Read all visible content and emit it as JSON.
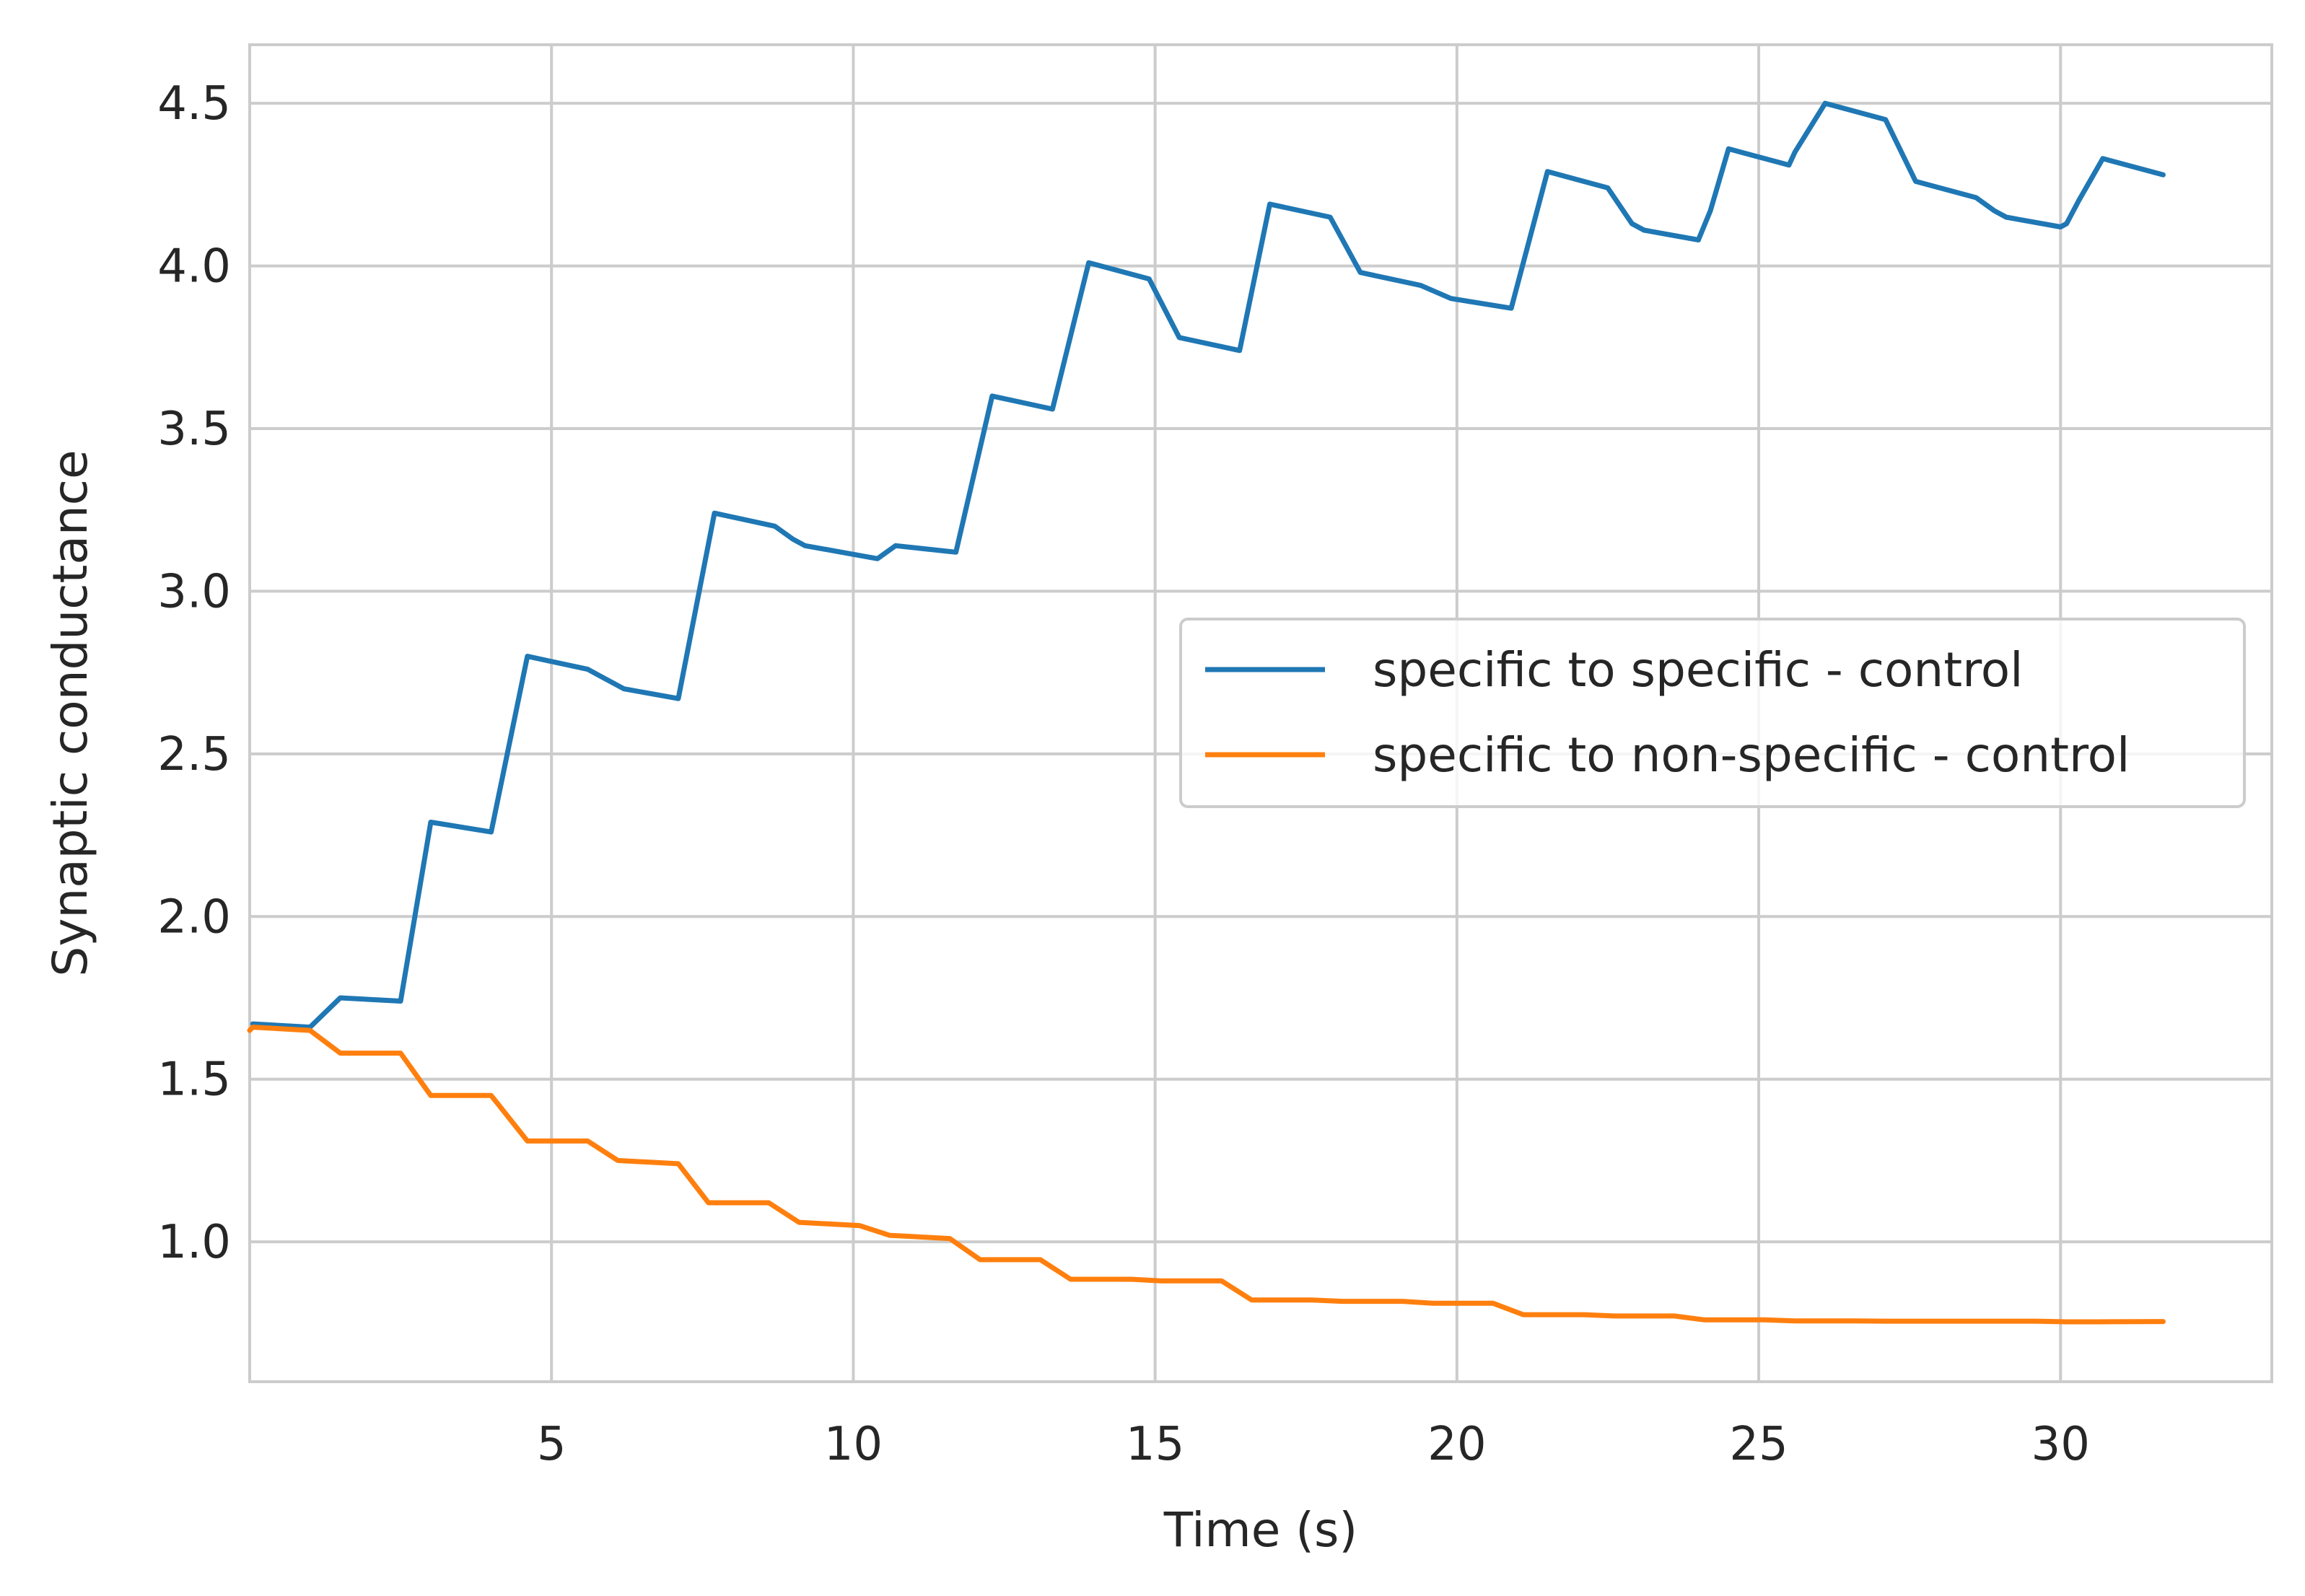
{
  "chart_data": {
    "type": "line",
    "title": "",
    "xlabel": "Time (s)",
    "ylabel": "Synaptic conductance",
    "xlim": [
      0,
      33.5
    ],
    "ylim": [
      0.57,
      4.68
    ],
    "xticks": [
      5,
      10,
      15,
      20,
      25,
      30
    ],
    "xtick_labels": [
      "5",
      "10",
      "15",
      "20",
      "25",
      "30"
    ],
    "yticks": [
      1.0,
      1.5,
      2.0,
      2.5,
      3.0,
      3.5,
      4.0,
      4.5
    ],
    "ytick_labels": [
      "1.0",
      "1.5",
      "2.0",
      "2.5",
      "3.0",
      "3.5",
      "4.0",
      "4.5"
    ],
    "grid": true,
    "legend_position": "center-right",
    "series": [
      {
        "name": "specific to specific - control",
        "color": "#1f77b4",
        "x": [
          0.05,
          1.0,
          1.5,
          2.5,
          3.0,
          4.0,
          4.6,
          5.6,
          5.8,
          6.2,
          7.1,
          7.7,
          8.7,
          9.0,
          9.2,
          10.1,
          10.4,
          10.7,
          11.7,
          12.3,
          13.3,
          13.9,
          14.9,
          15.4,
          16.4,
          16.9,
          17.9,
          18.4,
          19.4,
          19.9,
          20.9,
          21.5,
          22.5,
          22.9,
          23.1,
          24.0,
          24.2,
          24.5,
          25.5,
          25.6,
          26.1,
          27.1,
          27.6,
          28.6,
          28.9,
          29.1,
          30.0,
          30.1,
          30.3,
          30.7,
          31.7
        ],
        "y": [
          1.67,
          1.66,
          1.75,
          1.74,
          2.29,
          2.26,
          2.8,
          2.76,
          2.74,
          2.7,
          2.67,
          3.24,
          3.2,
          3.16,
          3.14,
          3.11,
          3.1,
          3.14,
          3.12,
          3.6,
          3.56,
          4.01,
          3.96,
          3.78,
          3.74,
          4.19,
          4.15,
          3.98,
          3.94,
          3.9,
          3.87,
          4.29,
          4.24,
          4.13,
          4.11,
          4.08,
          4.17,
          4.36,
          4.31,
          4.35,
          4.5,
          4.45,
          4.26,
          4.21,
          4.17,
          4.15,
          4.12,
          4.13,
          4.2,
          4.33,
          4.28
        ]
      },
      {
        "name": "specific to non-specific - control",
        "color": "#ff7f0e",
        "x": [
          0.0,
          0.05,
          1.0,
          1.5,
          2.5,
          3.0,
          4.0,
          4.6,
          5.6,
          6.1,
          7.1,
          7.6,
          8.6,
          9.1,
          10.1,
          10.6,
          11.6,
          12.1,
          13.1,
          13.6,
          14.6,
          15.1,
          16.1,
          16.6,
          17.6,
          18.1,
          19.1,
          19.6,
          20.6,
          21.1,
          22.1,
          22.6,
          23.6,
          24.1,
          25.1,
          25.6,
          26.6,
          27.1,
          28.1,
          28.6,
          29.6,
          30.1,
          30.6,
          31.7
        ],
        "y": [
          1.65,
          1.66,
          1.65,
          1.58,
          1.58,
          1.45,
          1.45,
          1.31,
          1.31,
          1.25,
          1.24,
          1.12,
          1.12,
          1.06,
          1.05,
          1.02,
          1.01,
          0.945,
          0.945,
          0.885,
          0.885,
          0.88,
          0.88,
          0.821,
          0.821,
          0.817,
          0.817,
          0.811,
          0.811,
          0.776,
          0.776,
          0.772,
          0.772,
          0.76,
          0.76,
          0.757,
          0.757,
          0.756,
          0.756,
          0.756,
          0.756,
          0.754,
          0.754,
          0.755
        ]
      }
    ]
  }
}
